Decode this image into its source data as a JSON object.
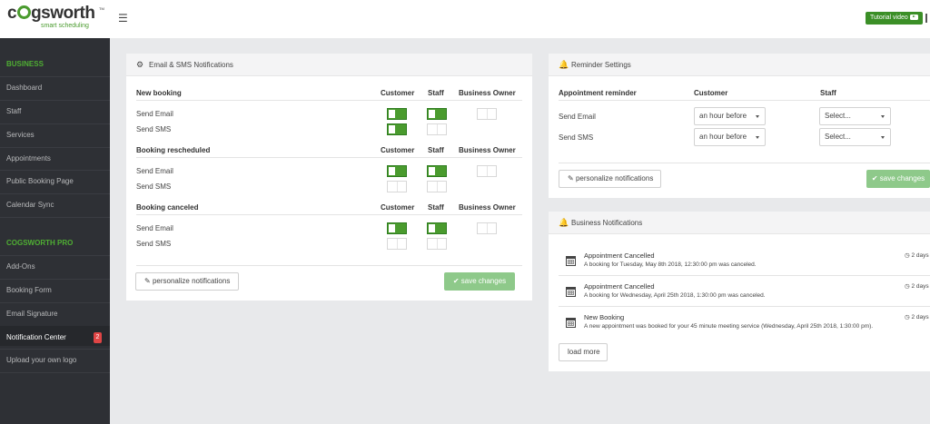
{
  "brand": {
    "logo_text": "cogsworth",
    "logo_sub": "smart scheduling",
    "logo_tm": "TM"
  },
  "topbar": {
    "menu_icon": "hamburger-icon",
    "tutorial_label": "Tutorial video",
    "tutorial_icon": "youtube-play-icon"
  },
  "sidebar": {
    "sections": [
      {
        "label": "BUSINESS"
      },
      {
        "label": "COGSWORTH PRO"
      }
    ],
    "business_items": [
      "Dashboard",
      "Staff",
      "Services",
      "Appointments",
      "Public Booking Page",
      "Calendar Sync"
    ],
    "pro_items": [
      "Add-Ons",
      "Booking Form",
      "Email Signature",
      "Notification Center",
      "Upload your own logo"
    ],
    "active_item": "Notification Center",
    "badge": "2"
  },
  "email_sms": {
    "title": "Email & SMS Notifications",
    "icon": "gears-icon",
    "col_customer": "Customer",
    "col_staff": "Staff",
    "col_owner": "Business Owner",
    "groups": [
      {
        "title": "New booking",
        "rows": [
          {
            "label": "Send Email",
            "customer": true,
            "staff": true,
            "owner": false
          },
          {
            "label": "Send SMS",
            "customer": true,
            "staff": false
          }
        ]
      },
      {
        "title": "Booking rescheduled",
        "rows": [
          {
            "label": "Send Email",
            "customer": true,
            "staff": true,
            "owner": false
          },
          {
            "label": "Send SMS",
            "customer": false,
            "staff": false
          }
        ]
      },
      {
        "title": "Booking canceled",
        "rows": [
          {
            "label": "Send Email",
            "customer": true,
            "staff": true,
            "owner": false
          },
          {
            "label": "Send SMS",
            "customer": false,
            "staff": false
          }
        ]
      }
    ],
    "personalize_label": "personalize notifications",
    "save_label": "save changes"
  },
  "reminder": {
    "title": "Reminder Settings",
    "icon": "bell-icon",
    "col_reminder": "Appointment reminder",
    "col_customer": "Customer",
    "col_staff": "Staff",
    "rows": [
      {
        "label": "Send Email",
        "customer_value": "an hour before",
        "staff_value": "Select..."
      },
      {
        "label": "Send SMS",
        "customer_value": "an hour before",
        "staff_value": "Select..."
      }
    ],
    "personalize_label": "personalize notifications",
    "save_label": "save changes"
  },
  "business_notifications": {
    "title": "Business Notifications",
    "icon": "bell-icon",
    "items": [
      {
        "title": "Appointment Cancelled",
        "desc": "A booking for Tuesday, May 8th 2018, 12:30:00 pm was canceled.",
        "time": "2 days"
      },
      {
        "title": "Appointment Cancelled",
        "desc": "A booking for Wednesday, April 25th 2018, 1:30:00 pm was canceled.",
        "time": "2 days"
      },
      {
        "title": "New Booking",
        "desc": "A new appointment was booked for your 45 minute meeting service (Wednesday, April 25th 2018, 1:30:00 pm).",
        "time": "2 days"
      }
    ],
    "load_more_label": "load more"
  },
  "colors": {
    "brand_green": "#4a9b2e",
    "sidebar_bg": "#2e3035",
    "save_green": "#8ec98a",
    "badge_red": "#e04545"
  }
}
